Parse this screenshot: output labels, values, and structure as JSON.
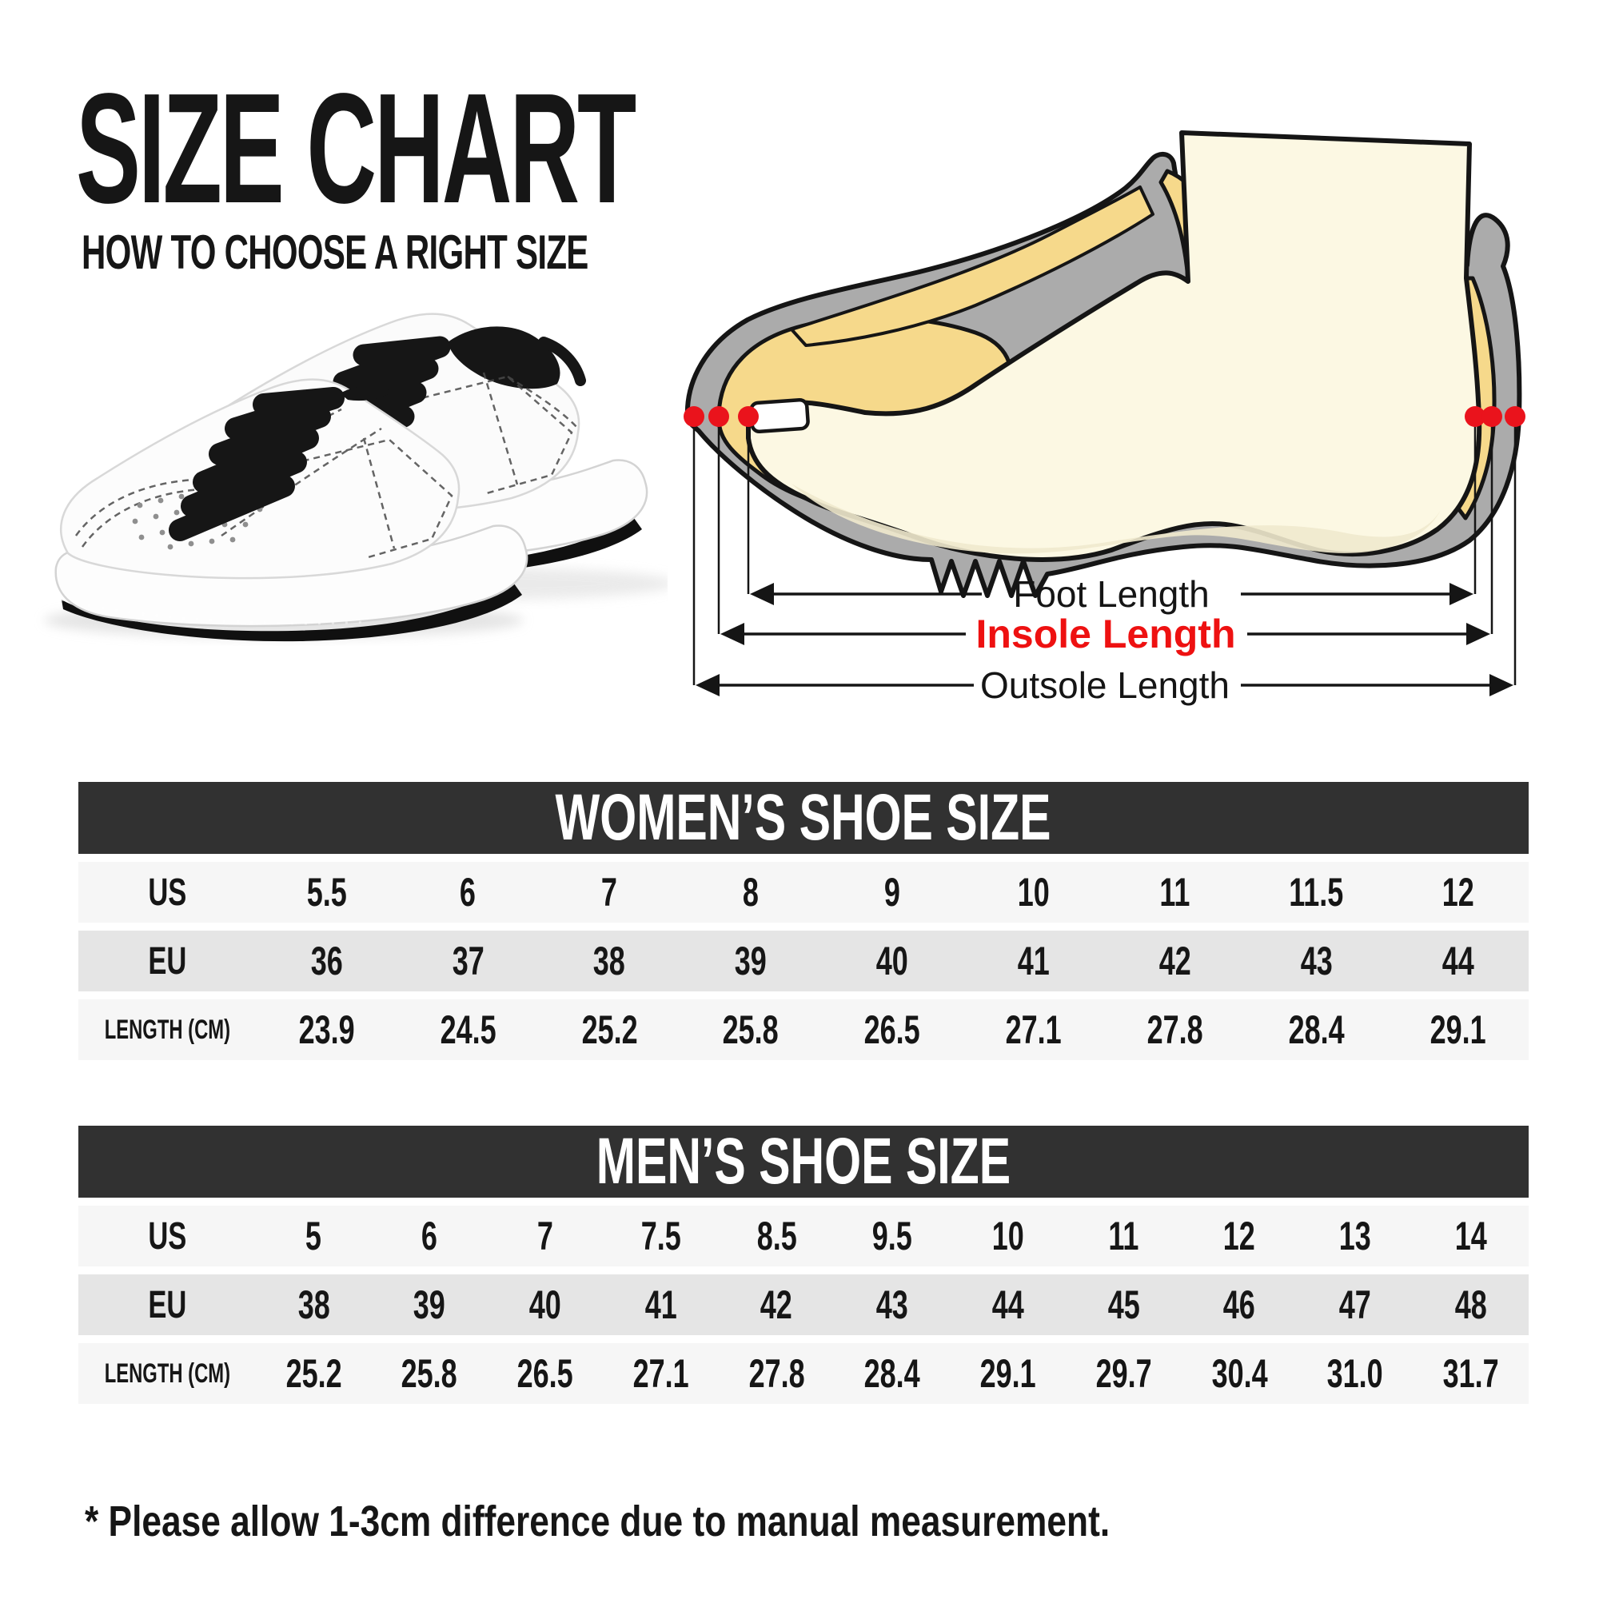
{
  "colors": {
    "accent_red": "#ee1111",
    "dot_red": "#ea131c",
    "header_bg": "#313131",
    "row_light": "#f6f6f6",
    "row_mid": "#e5e5e5",
    "ink": "#161616",
    "sole_gray": "#ababab",
    "insole_yellow": "#f6d98b",
    "foot_cream": "#fcf8e3"
  },
  "header": {
    "title": "SIZE CHART",
    "subtitle": "HOW TO CHOOSE A RIGHT SIZE"
  },
  "diagram": {
    "foot_label": "Foot Length",
    "insole_label": "Insole Length",
    "outsole_label": "Outsole Length"
  },
  "tables": [
    {
      "title": "WOMEN’S SHOE SIZE",
      "rows": [
        {
          "label": "US",
          "values": [
            "5.5",
            "6",
            "7",
            "8",
            "9",
            "10",
            "11",
            "11.5",
            "12"
          ]
        },
        {
          "label": "EU",
          "values": [
            "36",
            "37",
            "38",
            "39",
            "40",
            "41",
            "42",
            "43",
            "44"
          ]
        },
        {
          "label": "LENGTH (CM)",
          "values": [
            "23.9",
            "24.5",
            "25.2",
            "25.8",
            "26.5",
            "27.1",
            "27.8",
            "28.4",
            "29.1"
          ]
        }
      ]
    },
    {
      "title": "MEN’S SHOE SIZE",
      "rows": [
        {
          "label": "US",
          "values": [
            "5",
            "6",
            "7",
            "7.5",
            "8.5",
            "9.5",
            "10",
            "11",
            "12",
            "13",
            "14"
          ]
        },
        {
          "label": "EU",
          "values": [
            "38",
            "39",
            "40",
            "41",
            "42",
            "43",
            "44",
            "45",
            "46",
            "47",
            "48"
          ]
        },
        {
          "label": "LENGTH (CM)",
          "values": [
            "25.2",
            "25.8",
            "26.5",
            "27.1",
            "27.8",
            "28.4",
            "29.1",
            "29.7",
            "30.4",
            "31.0",
            "31.7"
          ]
        }
      ]
    }
  ],
  "footnote": "* Please allow 1-3cm difference due to manual measurement."
}
